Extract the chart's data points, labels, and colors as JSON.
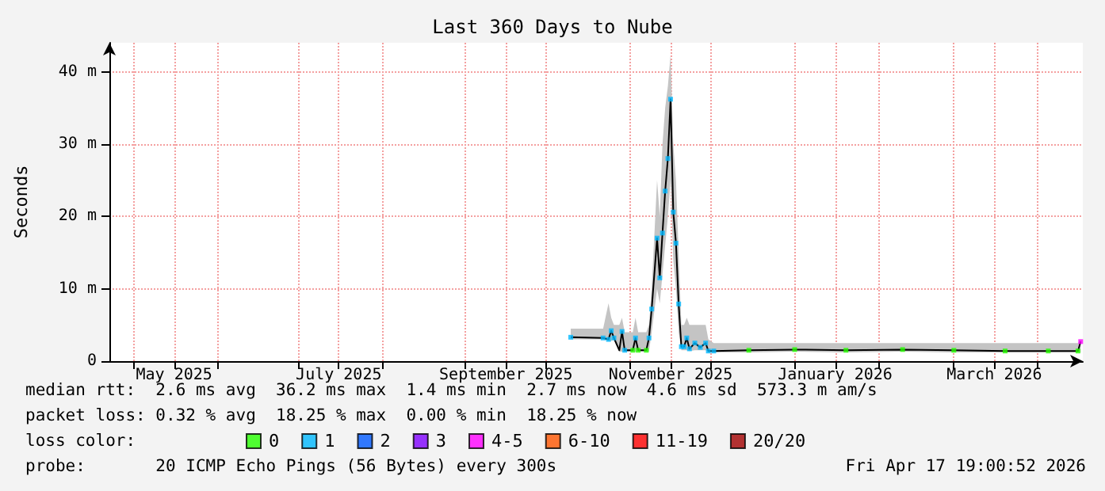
{
  "chart_data": {
    "type": "line",
    "title": "Last 360 Days to Nube",
    "ylabel": "Seconds",
    "xlim": [
      "2025-04-22",
      "2026-04-17T19:00"
    ],
    "xticks": [
      {
        "value": "2025-05-01",
        "label": null
      },
      {
        "value": "2025-05-16",
        "label": "May 2025"
      },
      {
        "value": "2025-06-01",
        "label": null
      },
      {
        "value": "2025-07-01",
        "label": null
      },
      {
        "value": "2025-07-16",
        "label": "July 2025"
      },
      {
        "value": "2025-08-01",
        "label": null
      },
      {
        "value": "2025-09-01",
        "label": null
      },
      {
        "value": "2025-09-16",
        "label": "September 2025"
      },
      {
        "value": "2025-10-01",
        "label": null
      },
      {
        "value": "2025-11-01",
        "label": null
      },
      {
        "value": "2025-11-16",
        "label": "November 2025"
      },
      {
        "value": "2025-12-01",
        "label": null
      },
      {
        "value": "2026-01-01",
        "label": null
      },
      {
        "value": "2026-01-16",
        "label": "January 2026"
      },
      {
        "value": "2026-02-01",
        "label": null
      },
      {
        "value": "2026-03-01",
        "label": null
      },
      {
        "value": "2026-03-16",
        "label": "March 2026"
      },
      {
        "value": "2026-04-01",
        "label": null
      }
    ],
    "ylim": [
      0,
      44
    ],
    "yticks": [
      0,
      {
        "value": 10,
        "label": "10 m"
      },
      {
        "value": 20,
        "label": "20 m"
      },
      {
        "value": 30,
        "label": "30 m"
      },
      {
        "value": 40,
        "label": "40 m"
      }
    ],
    "grid": true,
    "legend": "bottom",
    "legend_title": "loss color:",
    "marker": "none",
    "series": [
      {
        "color": "#000000",
        "x": [
          "2025-10-10",
          "2025-10-22",
          "2025-10-24",
          "2025-10-25",
          "2025-10-26",
          "2025-10-28",
          "2025-10-29",
          "2025-10-30",
          "2025-11-02",
          "2025-11-03",
          "2025-11-04",
          "2025-11-07",
          "2025-11-08",
          "2025-11-09",
          "2025-11-11",
          "2025-11-12",
          "2025-11-13",
          "2025-11-14",
          "2025-11-15",
          "2025-11-16",
          "2025-11-17",
          "2025-11-18",
          "2025-11-19",
          "2025-11-20",
          "2025-11-21",
          "2025-11-22",
          "2025-11-23",
          "2025-11-25",
          "2025-11-27",
          "2025-11-29",
          "2025-11-30",
          "2025-12-02",
          "2025-12-15",
          "2026-01-01",
          "2026-01-20",
          "2026-02-10",
          "2026-03-01",
          "2026-03-20",
          "2026-04-05",
          "2026-04-16",
          "2026-04-17"
        ],
        "values": [
          3.3,
          3.2,
          3.0,
          4.2,
          3.2,
          1.5,
          4.1,
          1.5,
          1.5,
          3.2,
          1.5,
          1.5,
          3.2,
          7.2,
          17,
          11.5,
          17.7,
          23.5,
          28,
          36.2,
          20.6,
          16.3,
          7.9,
          2.0,
          2.0,
          3.2,
          1.7,
          2.5,
          1.9,
          2.5,
          1.4,
          1.4,
          1.5,
          1.6,
          1.5,
          1.6,
          1.5,
          1.4,
          1.4,
          1.4,
          2.7
        ],
        "lower": [
          3.0,
          3.0,
          2.8,
          2.8,
          3.0,
          1.3,
          1.3,
          1.3,
          1.3,
          1.3,
          1.3,
          1.3,
          1.3,
          4,
          10,
          8,
          12,
          16,
          20,
          25,
          14,
          10,
          4,
          1.5,
          1.5,
          1.5,
          1.4,
          1.5,
          1.5,
          1.5,
          1.2,
          1.2,
          1.2,
          1.3,
          1.2,
          1.3,
          1.2,
          1.2,
          1.2,
          1.2,
          1.2
        ],
        "upper": [
          4.5,
          4.5,
          8,
          6,
          5,
          5,
          6,
          4,
          4,
          6,
          4,
          4,
          5,
          10,
          25,
          20,
          30,
          35,
          38,
          42.3,
          30,
          25,
          15,
          5,
          5,
          6,
          5,
          5,
          5,
          5,
          3,
          2.5,
          2.5,
          2.5,
          2.5,
          2.5,
          2.5,
          2.5,
          2.5,
          2.5,
          3
        ]
      },
      {
        "type": "scatter",
        "name": "0",
        "color": "#26ff00",
        "marker": "square",
        "x": [
          "2025-11-02",
          "2025-11-04",
          "2025-11-07",
          "2025-12-15",
          "2026-01-01",
          "2026-01-20",
          "2026-02-10",
          "2026-03-01",
          "2026-03-20",
          "2026-04-05",
          "2026-04-16"
        ],
        "values": [
          1.5,
          1.5,
          1.5,
          1.5,
          1.6,
          1.5,
          1.6,
          1.5,
          1.4,
          1.4,
          1.4
        ]
      },
      {
        "type": "scatter",
        "name": "1",
        "color": "#00b8ff",
        "marker": "square",
        "x": [
          "2025-10-10",
          "2025-10-22",
          "2025-10-24",
          "2025-10-25",
          "2025-10-26",
          "2025-10-29",
          "2025-10-30",
          "2025-11-03",
          "2025-11-08",
          "2025-11-09",
          "2025-11-11",
          "2025-11-12",
          "2025-11-13",
          "2025-11-14",
          "2025-11-15",
          "2025-11-16",
          "2025-11-17",
          "2025-11-18",
          "2025-11-19",
          "2025-11-20",
          "2025-11-21",
          "2025-11-22",
          "2025-11-23",
          "2025-11-25",
          "2025-11-27",
          "2025-11-29",
          "2025-11-30",
          "2025-12-02"
        ],
        "values": [
          3.3,
          3.2,
          3.0,
          4.2,
          3.2,
          4.1,
          1.5,
          3.2,
          3.2,
          7.2,
          17,
          11.5,
          17.7,
          23.5,
          28,
          36.2,
          20.6,
          16.3,
          7.9,
          2.0,
          2.0,
          3.2,
          1.7,
          2.5,
          1.9,
          2.5,
          1.4,
          1.4
        ]
      },
      {
        "type": "scatter",
        "name": "2",
        "color": "#0059ff",
        "marker": "square"
      },
      {
        "type": "scatter",
        "name": "3",
        "color": "#7e00ff",
        "marker": "square"
      },
      {
        "type": "scatter",
        "name": "4-5",
        "color": "#ff00ff",
        "marker": "square",
        "x": [
          "2026-04-17"
        ],
        "values": [
          2.7
        ]
      },
      {
        "type": "scatter",
        "name": "6-10",
        "color": "#ff5500",
        "marker": "square"
      },
      {
        "type": "scatter",
        "name": "11-19",
        "color": "#ff0000",
        "marker": "square"
      },
      {
        "type": "scatter",
        "name": "20/20",
        "color": "#a10000",
        "marker": "square"
      }
    ],
    "annotations": [
      "median rtt:  2.6 ms avg  36.2 ms max  1.4 ms min  2.7 ms now  4.6 ms sd  573.3 m am/s",
      "packet loss: 0.32 % avg  18.25 % max  0.00 % min  18.25 % now",
      "probe:       20 ICMP Echo Pings (56 Bytes) every 300s",
      "Fri Apr 17 19:00:52 2026"
    ]
  }
}
